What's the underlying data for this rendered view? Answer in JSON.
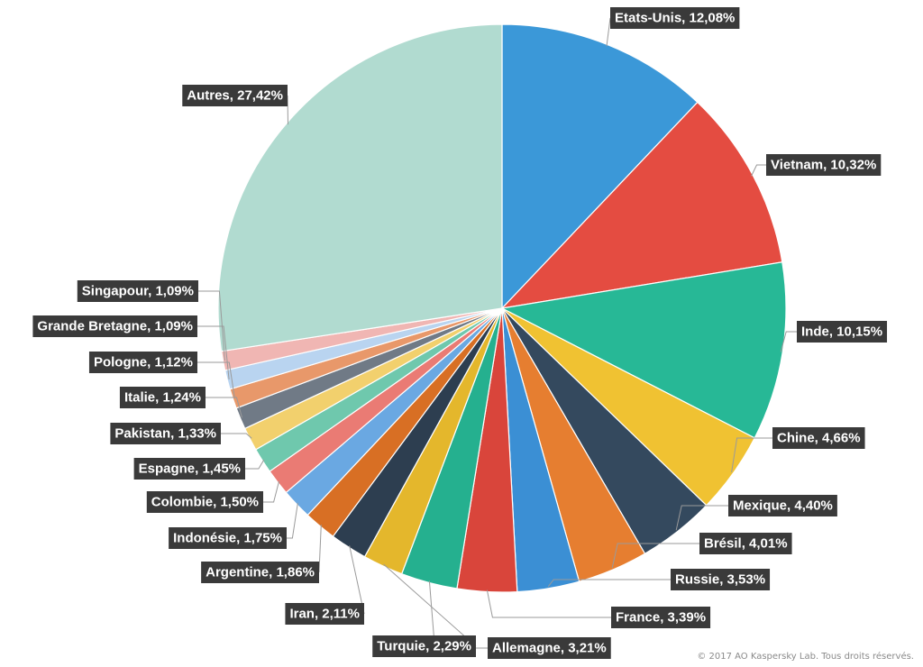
{
  "chart_data": {
    "type": "pie",
    "slices": [
      {
        "label": "Etats-Unis, 12,08%",
        "value": 12.08,
        "color": "#3b98d8"
      },
      {
        "label": "Vietnam, 10,32%",
        "value": 10.32,
        "color": "#e44c41"
      },
      {
        "label": "Inde, 10,15%",
        "value": 10.15,
        "color": "#27b896"
      },
      {
        "label": "Chine, 4,66%",
        "value": 4.66,
        "color": "#f0c232"
      },
      {
        "label": "Mexique, 4,40%",
        "value": 4.4,
        "color": "#34495e"
      },
      {
        "label": "Brésil, 4,01%",
        "value": 4.01,
        "color": "#e67e30"
      },
      {
        "label": "Russie, 3,53%",
        "value": 3.53,
        "color": "#3b8fd4"
      },
      {
        "label": "France, 3,39%",
        "value": 3.39,
        "color": "#d9453b"
      },
      {
        "label": "Allemagne, 3,21%",
        "value": 3.21,
        "color": "#25b08f"
      },
      {
        "label": "Turquie, 2,29%",
        "value": 2.29,
        "color": "#e4b72c"
      },
      {
        "label": "Iran, 2,11%",
        "value": 2.11,
        "color": "#2d3e50"
      },
      {
        "label": "Argentine, 1,86%",
        "value": 1.86,
        "color": "#d86f24"
      },
      {
        "label": "Indonésie, 1,75%",
        "value": 1.75,
        "color": "#6aa8e2"
      },
      {
        "label": "Colombie, 1,50%",
        "value": 1.5,
        "color": "#ea7b74"
      },
      {
        "label": "Espagne, 1,45%",
        "value": 1.45,
        "color": "#6fc8ad"
      },
      {
        "label": "Pakistan, 1,33%",
        "value": 1.33,
        "color": "#f2d06d"
      },
      {
        "label": "Italie, 1,24%",
        "value": 1.24,
        "color": "#707a86"
      },
      {
        "label": "Pologne, 1,12%",
        "value": 1.12,
        "color": "#e8986a"
      },
      {
        "label": "Grande Bretagne, 1,09%",
        "value": 1.09,
        "color": "#b9d4f0"
      },
      {
        "label": "Singapour, 1,09%",
        "value": 1.09,
        "color": "#f0b6b3"
      },
      {
        "label": "Autres, 27,42%",
        "value": 27.42,
        "color": "#b1dbd0"
      }
    ]
  },
  "copyright": "© 2017 AO Kaspersky Lab. Tous droits réservés."
}
